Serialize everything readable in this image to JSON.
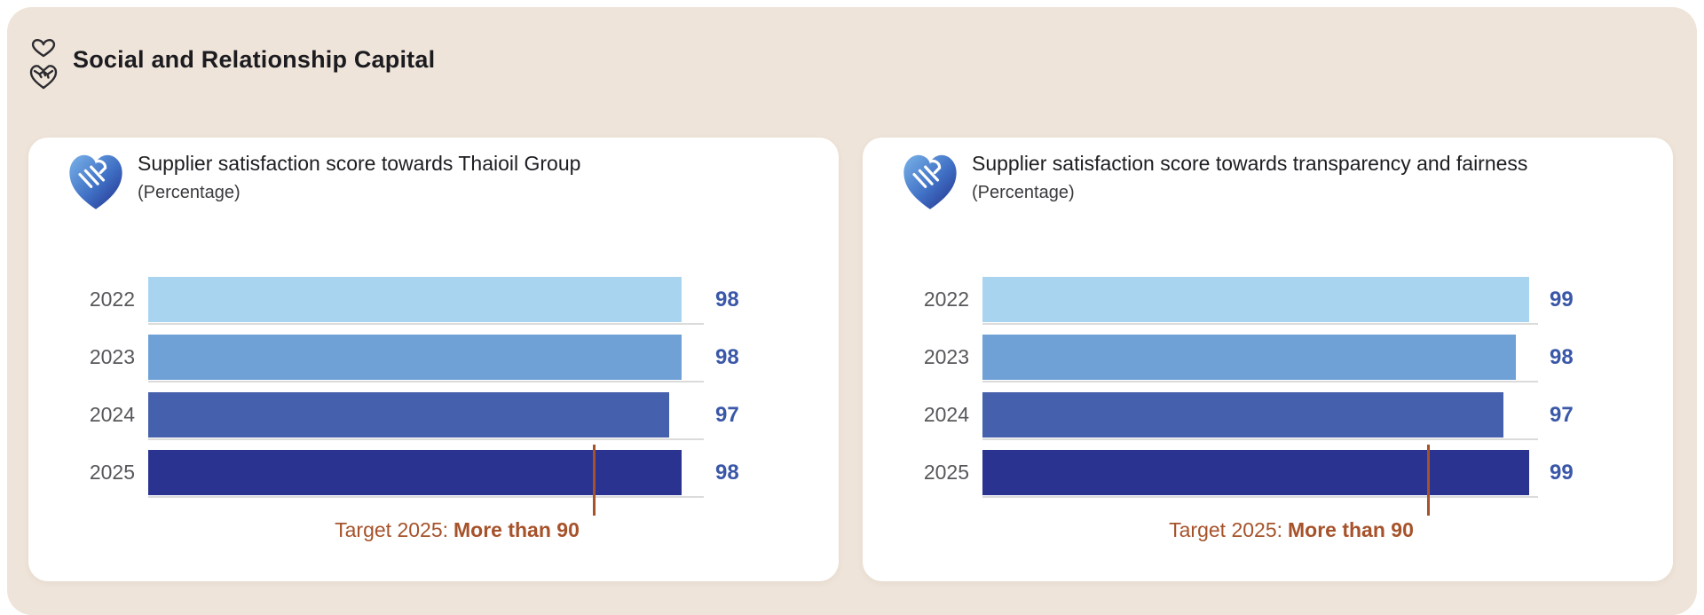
{
  "page": {
    "header_title": "Social and Relationship Capital"
  },
  "colors": {
    "panel_background": "#EFE4D9",
    "card_background": "#FFFFFF",
    "axis_underline": "#DBDBDB",
    "year_label": "#57575C",
    "title_text": "#1D1D22"
  },
  "chart_data": [
    {
      "type": "bar",
      "orientation": "horizontal",
      "title": "Supplier satisfaction score towards Thaioil Group",
      "subtitle": "(Percentage)",
      "categories": [
        "2022",
        "2023",
        "2024",
        "2025"
      ],
      "values": [
        98,
        98,
        97,
        98
      ],
      "bar_colors": [
        "#A9D4F0",
        "#6FA1D7",
        "#4560AC",
        "#2A3390"
      ],
      "value_label_color": "#3A57A8",
      "xlim_hint": [
        56,
        100
      ],
      "grid": false,
      "legend": "none",
      "target": {
        "value": 90,
        "text_regular": "Target 2025:",
        "text_bold": "More than 90",
        "color": "#A6522A"
      }
    },
    {
      "type": "bar",
      "orientation": "horizontal",
      "title": "Supplier satisfaction score towards transparency and fairness",
      "subtitle": "(Percentage)",
      "categories": [
        "2022",
        "2023",
        "2024",
        "2025"
      ],
      "values": [
        99,
        98,
        97,
        99
      ],
      "bar_colors": [
        "#A9D4F0",
        "#6FA1D7",
        "#4560AC",
        "#2A3390"
      ],
      "value_label_color": "#3A57A8",
      "xlim_hint": [
        56,
        100
      ],
      "grid": false,
      "legend": "none",
      "target": {
        "value": 90,
        "text_regular": "Target 2025:",
        "text_bold": "More than 90",
        "color": "#A6522A"
      }
    }
  ]
}
